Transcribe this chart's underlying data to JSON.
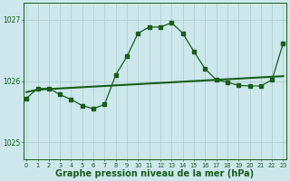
{
  "background_color": "#cce8ec",
  "grid_color": "#aacccc",
  "line_color": "#1a5c1a",
  "xlabel": "Graphe pression niveau de la mer (hPa)",
  "xlabel_fontsize": 7,
  "yticks": [
    1025,
    1026,
    1027
  ],
  "xticks": [
    0,
    1,
    2,
    3,
    4,
    5,
    6,
    7,
    8,
    9,
    10,
    11,
    12,
    13,
    14,
    15,
    16,
    17,
    18,
    19,
    20,
    21,
    22,
    23
  ],
  "ylim": [
    1024.72,
    1027.28
  ],
  "xlim": [
    -0.3,
    23.3
  ],
  "series1_x": [
    0,
    1,
    2,
    3,
    4,
    5,
    6,
    7,
    8,
    9,
    10,
    11,
    12,
    13,
    14,
    15,
    16,
    17,
    18,
    19,
    20,
    21,
    22,
    23
  ],
  "series1_y": [
    1025.82,
    1025.86,
    1025.87,
    1025.88,
    1025.89,
    1025.9,
    1025.91,
    1025.92,
    1025.93,
    1025.94,
    1025.95,
    1025.96,
    1025.97,
    1025.98,
    1025.99,
    1026.0,
    1026.01,
    1026.02,
    1026.03,
    1026.04,
    1026.05,
    1026.06,
    1026.07,
    1026.08
  ],
  "series2_x": [
    0,
    1,
    2,
    3,
    4,
    5,
    6,
    7,
    8,
    9,
    10,
    11,
    12,
    13,
    14,
    15,
    16,
    17,
    18,
    19,
    20,
    21,
    22,
    23
  ],
  "series2_y": [
    1025.72,
    1025.88,
    1025.88,
    1025.78,
    1025.7,
    1025.6,
    1025.55,
    1025.62,
    1026.1,
    1026.4,
    1026.78,
    1026.88,
    1026.88,
    1026.95,
    1026.78,
    1026.48,
    1026.2,
    1026.02,
    1025.98,
    1025.93,
    1025.92,
    1025.92,
    1026.02,
    1026.62
  ]
}
